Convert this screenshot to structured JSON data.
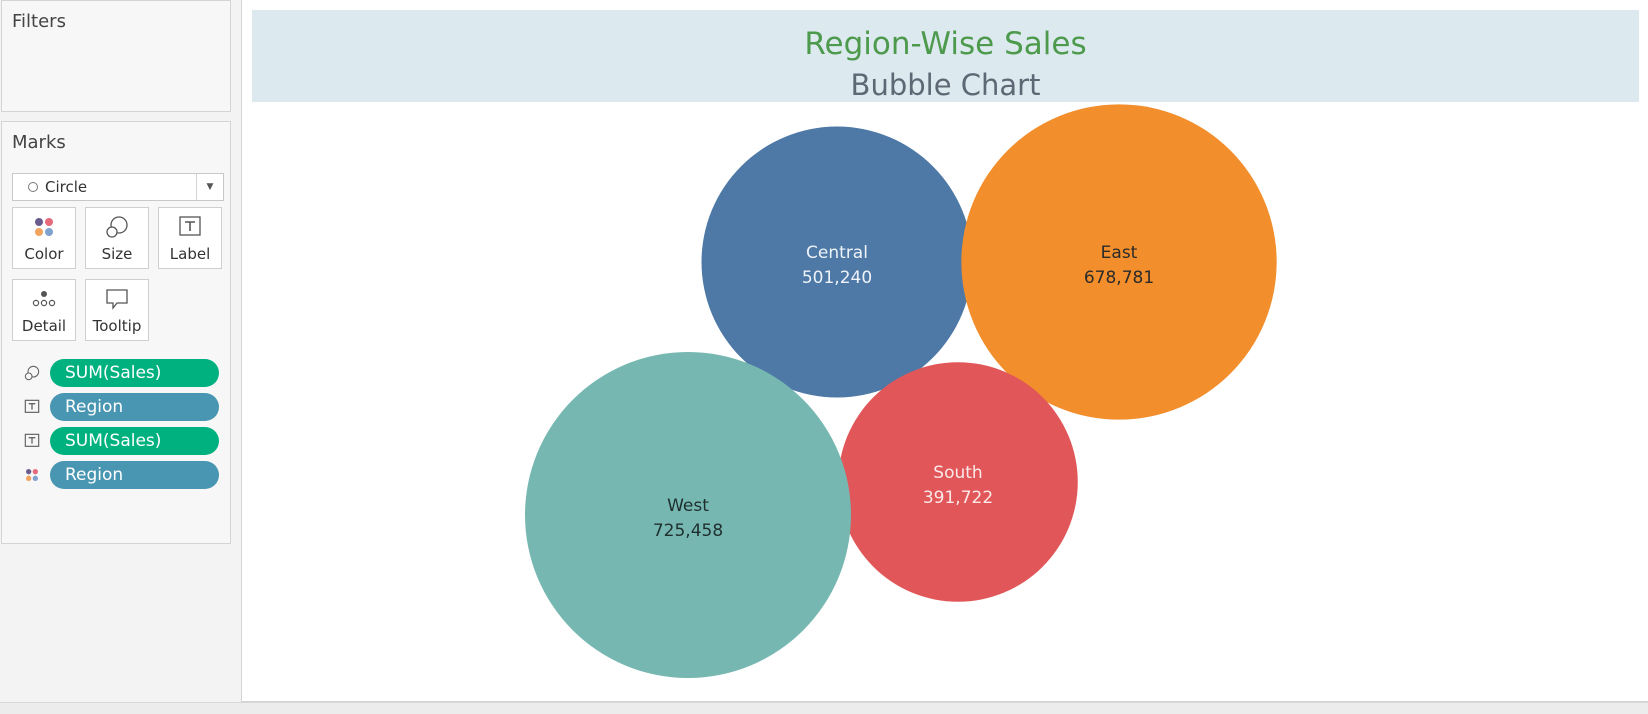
{
  "filters": {
    "title": "Filters"
  },
  "marks": {
    "title": "Marks",
    "mark_type": "Circle",
    "cards": [
      {
        "label": "Color",
        "icon": "color-dots-icon"
      },
      {
        "label": "Size",
        "icon": "size-icon"
      },
      {
        "label": "Label",
        "icon": "label-icon"
      },
      {
        "label": "Detail",
        "icon": "detail-icon"
      },
      {
        "label": "Tooltip",
        "icon": "tooltip-icon"
      }
    ],
    "shelf": [
      {
        "icon": "size-icon",
        "pill": "SUM(Sales)",
        "kind": "measure"
      },
      {
        "icon": "label-icon",
        "pill": "Region",
        "kind": "dimension"
      },
      {
        "icon": "label-icon",
        "pill": "SUM(Sales)",
        "kind": "measure"
      },
      {
        "icon": "color-dots-icon",
        "pill": "Region",
        "kind": "dimension"
      }
    ]
  },
  "chart": {
    "title": "Region-Wise Sales",
    "subtitle": "Bubble Chart",
    "title_color": "#4d9a4d",
    "subtitle_color": "#5e6874"
  },
  "chart_data": {
    "type": "bubble",
    "title": "Region-Wise Sales",
    "subtitle": "Bubble Chart",
    "size_measure": "SUM(Sales)",
    "color_dimension": "Region",
    "series": [
      {
        "name": "Central",
        "value": 501240,
        "label": "501,240",
        "color": "#4e79a7",
        "text_color": "#eef3f8"
      },
      {
        "name": "East",
        "value": 678781,
        "label": "678,781",
        "color": "#f28e2b",
        "text_color": "#2b2b2b"
      },
      {
        "name": "South",
        "value": 391722,
        "label": "391,722",
        "color": "#e15759",
        "text_color": "#fbe9e9"
      },
      {
        "name": "West",
        "value": 725458,
        "label": "725,458",
        "color": "#76b7b2",
        "text_color": "#1f2f2e"
      }
    ]
  }
}
